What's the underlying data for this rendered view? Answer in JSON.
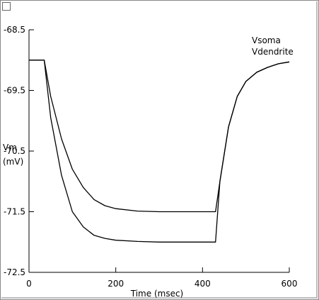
{
  "chart_data": {
    "type": "line",
    "title": "",
    "xlabel": "Time (msec)",
    "ylabel": "Vm\n(mV)",
    "xlim": [
      0,
      600
    ],
    "ylim": [
      -72.5,
      -68.5
    ],
    "x_ticks": [
      "0",
      "200",
      "400",
      "600"
    ],
    "y_ticks": [
      "-68.5",
      "-69.5",
      "-70.5",
      "-71.5",
      "-72.5"
    ],
    "grid": false,
    "legend": [
      "Vsoma",
      "Vdendrite"
    ],
    "legend_position": "top-right",
    "series": [
      {
        "name": "Vsoma",
        "x": [
          0,
          35,
          50,
          75,
          100,
          125,
          150,
          175,
          200,
          250,
          300,
          350,
          400,
          430,
          440,
          460,
          480,
          500,
          525,
          550,
          575,
          600
        ],
        "y": [
          -69.0,
          -69.0,
          -69.6,
          -70.3,
          -70.8,
          -71.1,
          -71.3,
          -71.4,
          -71.45,
          -71.49,
          -71.5,
          -71.5,
          -71.5,
          -71.5,
          -71.0,
          -70.1,
          -69.6,
          -69.35,
          -69.2,
          -69.12,
          -69.06,
          -69.03
        ]
      },
      {
        "name": "Vdendrite",
        "x": [
          0,
          35,
          50,
          75,
          100,
          125,
          150,
          175,
          200,
          250,
          300,
          350,
          400,
          430,
          440,
          460,
          480,
          500,
          525,
          550,
          575,
          600
        ],
        "y": [
          -69.0,
          -69.0,
          -69.95,
          -70.9,
          -71.5,
          -71.75,
          -71.89,
          -71.94,
          -71.97,
          -71.99,
          -72.0,
          -72.0,
          -72.0,
          -72.0,
          -71.0,
          -70.1,
          -69.6,
          -69.35,
          -69.2,
          -69.12,
          -69.06,
          -69.03
        ]
      }
    ]
  }
}
